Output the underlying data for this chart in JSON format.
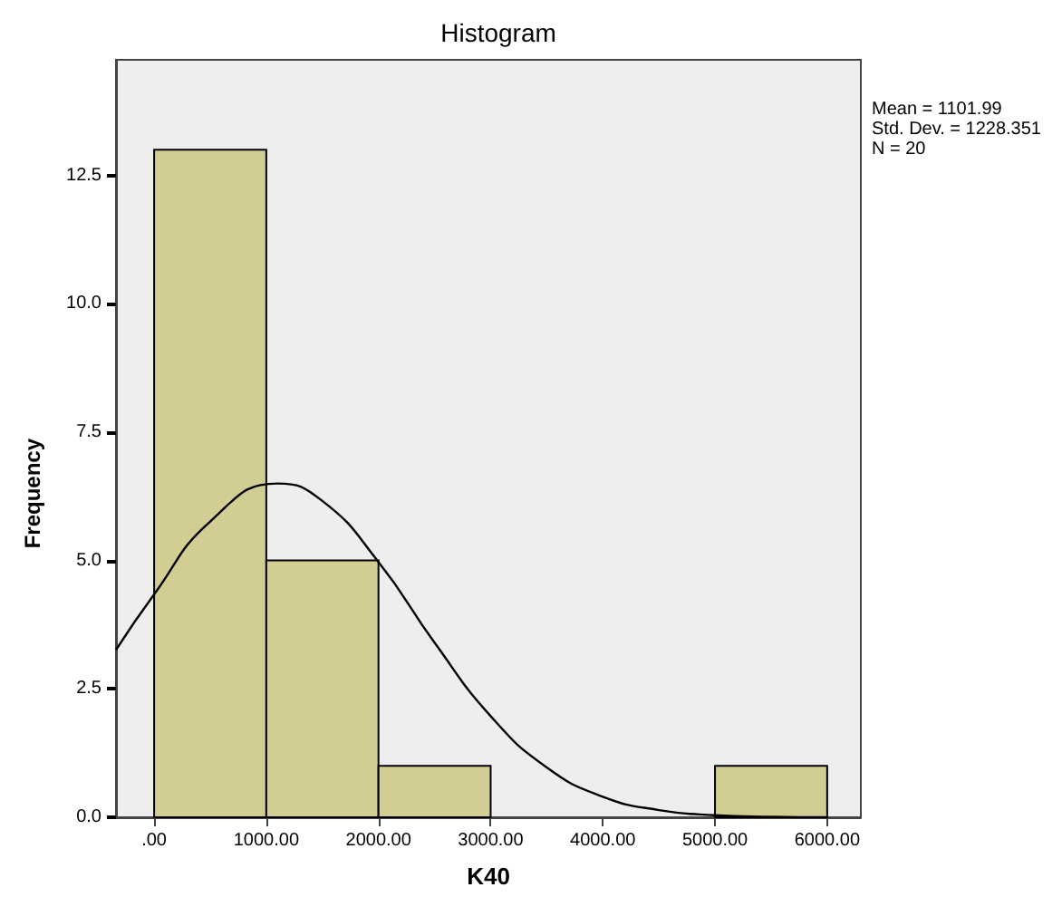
{
  "chart_data": {
    "type": "histogram",
    "title": "Histogram",
    "xlabel": "K40",
    "ylabel": "Frequency",
    "annotations": [
      "Mean = 1101.99\nStd. Dev. = 1228.351\nN = 20"
    ],
    "bins": [
      0,
      1000,
      2000,
      3000,
      4000,
      5000,
      6000
    ],
    "values": [
      13,
      5,
      1,
      0,
      0,
      1
    ],
    "color": "#d1cd93",
    "series": [
      {
        "type": "line",
        "color": "#000000",
        "x": [
          -340,
          0,
          500,
          1102,
          1500,
          2000,
          2500,
          3000,
          3500,
          4000,
          4500,
          5000,
          5500,
          6000
        ],
        "values": [
          3.26,
          4.34,
          5.76,
          6.5,
          6.16,
          4.97,
          3.4,
          1.97,
          0.97,
          0.4,
          0.14,
          0.04,
          0.01,
          0
        ]
      }
    ],
    "xlim": [
      -340,
      6300
    ],
    "xticks": [
      {
        "value": 0,
        "label": ".00"
      },
      {
        "value": 1000,
        "label": "1000.00"
      },
      {
        "value": 2000,
        "label": "2000.00"
      },
      {
        "value": 3000,
        "label": "3000.00"
      },
      {
        "value": 4000,
        "label": "4000.00"
      },
      {
        "value": 5000,
        "label": "5000.00"
      },
      {
        "value": 6000,
        "label": "6000.00"
      }
    ],
    "ylim": [
      0,
      14.75
    ],
    "yticks": [
      {
        "value": 0,
        "label": "0.0"
      },
      {
        "value": 2.5,
        "label": "2.5"
      },
      {
        "value": 5,
        "label": "5.0"
      },
      {
        "value": 7.5,
        "label": "7.5"
      },
      {
        "value": 10,
        "label": "10.0"
      },
      {
        "value": 12.5,
        "label": "12.5"
      }
    ],
    "grid": false,
    "legend": false,
    "marker": "none",
    "line_style": "solid"
  }
}
